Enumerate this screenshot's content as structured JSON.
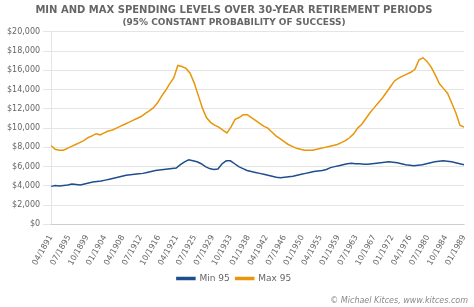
{
  "chart_data": {
    "type": "line",
    "title": "MIN AND MAX SPENDING LEVELS OVER 30-YEAR RETIREMENT PERIODS",
    "subtitle": "(95% CONSTANT PROBABILITY OF SUCCESS)",
    "annotations": [
      "© Michael Kitces, www.kitces.com"
    ],
    "xlim": [
      0,
      101
    ],
    "xticks": [
      {
        "value": 0,
        "label": "04/1891"
      },
      {
        "value": 4.391,
        "label": "07/1895"
      },
      {
        "value": 8.783,
        "label": "10/1899"
      },
      {
        "value": 13.174,
        "label": "01/1904"
      },
      {
        "value": 17.565,
        "label": "04/1908"
      },
      {
        "value": 21.957,
        "label": "07/1912"
      },
      {
        "value": 26.348,
        "label": "10/1916"
      },
      {
        "value": 30.739,
        "label": "04/1921"
      },
      {
        "value": 35.13,
        "label": "07/1925"
      },
      {
        "value": 39.522,
        "label": "07/1929"
      },
      {
        "value": 43.913,
        "label": "10/1933"
      },
      {
        "value": 48.304,
        "label": "01/1938"
      },
      {
        "value": 52.696,
        "label": "04/1942"
      },
      {
        "value": 57.087,
        "label": "07/1946"
      },
      {
        "value": 61.478,
        "label": "01/1950"
      },
      {
        "value": 65.87,
        "label": "04/1955"
      },
      {
        "value": 70.261,
        "label": "01/1959"
      },
      {
        "value": 74.652,
        "label": "07/1963"
      },
      {
        "value": 79.043,
        "label": "10/1967"
      },
      {
        "value": 83.435,
        "label": "01/1972"
      },
      {
        "value": 87.826,
        "label": "04/1976"
      },
      {
        "value": 92.217,
        "label": "07/1980"
      },
      {
        "value": 96.609,
        "label": "10/1984"
      },
      {
        "value": 101,
        "label": "01/1989"
      }
    ],
    "ylim": [
      0,
      20000
    ],
    "yticks": [
      {
        "value": 0,
        "label": "$0"
      },
      {
        "value": 2000,
        "label": "$2,000"
      },
      {
        "value": 4000,
        "label": "$4,000"
      },
      {
        "value": 6000,
        "label": "$6,000"
      },
      {
        "value": 8000,
        "label": "$8,000"
      },
      {
        "value": 10000,
        "label": "$10,000"
      },
      {
        "value": 12000,
        "label": "$12,000"
      },
      {
        "value": 14000,
        "label": "$14,000"
      },
      {
        "value": 16000,
        "label": "$16,000"
      },
      {
        "value": 18000,
        "label": "$18,000"
      },
      {
        "value": 20000,
        "label": "$20,000"
      }
    ],
    "grid": true,
    "legend": "bottom",
    "series": [
      {
        "name": "Min 95",
        "color": "#1f4e8c",
        "x": [
          0,
          1.02,
          2.04,
          3.061,
          4.081,
          5.101,
          6.121,
          7.141,
          8.162,
          9.182,
          10.202,
          11.222,
          12.242,
          13.263,
          14.283,
          15.303,
          16.323,
          17.343,
          18.364,
          19.384,
          20.404,
          21.424,
          22.444,
          23.465,
          24.485,
          25.505,
          26.525,
          27.545,
          28.566,
          29.586,
          30.606,
          31.626,
          32.646,
          33.667,
          34.687,
          35.707,
          36.727,
          37.747,
          38.768,
          39.788,
          40.808,
          41.828,
          42.848,
          43.869,
          44.889,
          45.909,
          46.929,
          47.949,
          48.97,
          49.99,
          51.01,
          52.03,
          53.051,
          54.071,
          55.091,
          56.111,
          57.131,
          58.152,
          59.172,
          60.192,
          61.212,
          62.232,
          63.253,
          64.273,
          65.293,
          66.313,
          67.333,
          68.354,
          69.374,
          70.394,
          71.414,
          72.434,
          73.455,
          74.475,
          75.495,
          76.515,
          77.535,
          78.556,
          79.576,
          80.596,
          81.616,
          82.636,
          83.657,
          84.677,
          85.697,
          86.717,
          87.737,
          88.758,
          89.778,
          90.798,
          91.818,
          92.838,
          93.859,
          94.879,
          95.899,
          96.919,
          97.939,
          98.96,
          99.98,
          101
        ],
        "values": [
          3950,
          4050,
          4000,
          4050,
          4100,
          4200,
          4150,
          4100,
          4200,
          4300,
          4400,
          4450,
          4500,
          4600,
          4700,
          4800,
          4900,
          5000,
          5100,
          5150,
          5200,
          5250,
          5300,
          5400,
          5500,
          5600,
          5650,
          5700,
          5750,
          5800,
          5850,
          6200,
          6500,
          6700,
          6600,
          6500,
          6300,
          6000,
          5800,
          5700,
          5750,
          6300,
          6600,
          6600,
          6300,
          6000,
          5800,
          5600,
          5500,
          5400,
          5300,
          5200,
          5100,
          5000,
          4900,
          4850,
          4900,
          4950,
          5000,
          5100,
          5200,
          5300,
          5400,
          5500,
          5550,
          5600,
          5700,
          5900,
          6000,
          6100,
          6200,
          6300,
          6350,
          6300,
          6300,
          6250,
          6250,
          6300,
          6350,
          6400,
          6450,
          6500,
          6450,
          6400,
          6300,
          6200,
          6150,
          6100,
          6150,
          6200,
          6300,
          6400,
          6500,
          6550,
          6600,
          6550,
          6500,
          6400,
          6300,
          6200
        ]
      },
      {
        "name": "Max 95",
        "color": "#e8960a",
        "x": [
          0,
          1,
          2,
          3,
          4,
          5,
          6,
          7,
          8,
          9,
          10,
          11,
          12,
          13,
          14,
          15,
          16,
          17,
          18,
          19,
          20,
          21,
          22,
          23,
          24,
          25,
          26,
          27,
          28,
          29,
          30,
          31,
          32,
          33,
          34,
          35,
          36,
          37,
          38,
          39,
          40,
          41,
          42,
          43,
          44,
          45,
          46,
          47,
          48,
          49,
          50,
          51,
          52,
          53,
          54,
          55,
          56,
          57,
          58,
          59,
          60,
          61,
          62,
          63,
          64,
          65,
          66,
          67,
          68,
          69,
          70,
          71,
          72,
          73,
          74,
          75,
          76,
          77,
          78,
          79,
          80,
          81,
          82,
          83,
          84,
          85,
          86,
          87,
          88,
          89,
          90,
          91,
          92,
          93,
          94,
          95,
          96,
          97,
          98,
          99,
          100,
          101
        ],
        "values": [
          8200,
          7800,
          7700,
          7700,
          7900,
          8100,
          8300,
          8500,
          8700,
          9000,
          9200,
          9400,
          9300,
          9500,
          9700,
          9800,
          10000,
          10200,
          10400,
          10600,
          10800,
          11000,
          11200,
          11500,
          11800,
          12100,
          12600,
          13300,
          13900,
          14600,
          15200,
          16500,
          16400,
          16200,
          15700,
          14700,
          13400,
          12100,
          11100,
          10600,
          10300,
          10100,
          9800,
          9500,
          10100,
          10900,
          11100,
          11400,
          11400,
          11100,
          10800,
          10500,
          10200,
          10000,
          9600,
          9200,
          8900,
          8600,
          8300,
          8100,
          7900,
          7800,
          7700,
          7700,
          7700,
          7800,
          7900,
          8000,
          8100,
          8200,
          8300,
          8500,
          8700,
          9000,
          9400,
          10000,
          10400,
          11000,
          11600,
          12100,
          12600,
          13100,
          13700,
          14300,
          14900,
          15200,
          15400,
          15600,
          15800,
          16100,
          17100,
          17300,
          16900,
          16300,
          15500,
          14600,
          14100,
          13600,
          12600,
          11600,
          10300,
          10100
        ]
      }
    ]
  }
}
